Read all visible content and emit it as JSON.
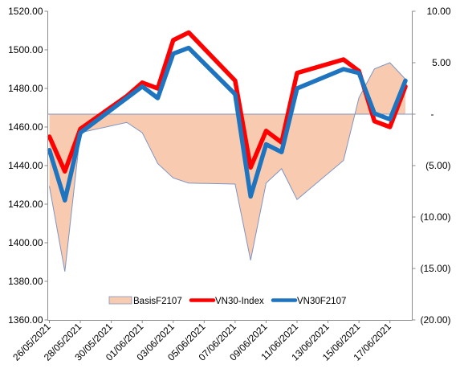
{
  "chart_data": {
    "type": "line",
    "x": [
      "26/05/2021",
      "27/05/2021",
      "28/05/2021",
      "31/05/2021",
      "01/06/2021",
      "02/06/2021",
      "03/06/2021",
      "04/06/2021",
      "07/06/2021",
      "08/06/2021",
      "09/06/2021",
      "10/06/2021",
      "11/06/2021",
      "14/06/2021",
      "15/06/2021",
      "16/06/2021",
      "17/06/2021",
      "18/06/2021"
    ],
    "x_date_min": "26/05/2021",
    "x_date_max": "18/06/2021",
    "x_tick_labels": [
      "26/05/2021",
      "28/05/2021",
      "30/05/2021",
      "01/06/2021",
      "03/06/2021",
      "05/06/2021",
      "07/06/2021",
      "09/06/2021",
      "11/06/2021",
      "13/06/2021",
      "15/06/2021",
      "17/06/2021"
    ],
    "y_left": {
      "min": 1360,
      "max": 1520,
      "step": 20,
      "tick_labels": [
        "1360.00",
        "1380.00",
        "1400.00",
        "1420.00",
        "1440.00",
        "1460.00",
        "1480.00",
        "1500.00",
        "1520.00"
      ]
    },
    "y_right": {
      "min": -20,
      "max": 10,
      "step": 5,
      "tick_labels": [
        "(20.00)",
        "(15.00)",
        "(10.00)",
        "(5.00)",
        "-",
        "5.00",
        "10.00"
      ]
    },
    "series": [
      {
        "name": "BasisF2107",
        "type": "area",
        "axis": "right",
        "color": "#F8CBB0",
        "outline": "#7F94C2",
        "dates": [
          "26/05/2021",
          "27/05/2021",
          "28/05/2021",
          "31/05/2021",
          "01/06/2021",
          "02/06/2021",
          "03/06/2021",
          "04/06/2021",
          "07/06/2021",
          "08/06/2021",
          "09/06/2021",
          "10/06/2021",
          "11/06/2021",
          "14/06/2021",
          "15/06/2021",
          "16/06/2021",
          "17/06/2021",
          "18/06/2021"
        ],
        "values": [
          -7.0,
          -15.3,
          -1.8,
          -0.8,
          -1.8,
          -4.8,
          -6.2,
          -6.7,
          -6.8,
          -14.2,
          -6.7,
          -5.3,
          -8.3,
          -4.5,
          1.6,
          4.4,
          5.0,
          3.4
        ]
      },
      {
        "name": "VN30-Index",
        "type": "line",
        "axis": "left",
        "color": "#FF0000",
        "dates": [
          "26/05/2021",
          "27/05/2021",
          "28/05/2021",
          "31/05/2021",
          "01/06/2021",
          "02/06/2021",
          "03/06/2021",
          "04/06/2021",
          "07/06/2021",
          "08/06/2021",
          "09/06/2021",
          "10/06/2021",
          "11/06/2021",
          "14/06/2021",
          "15/06/2021",
          "16/06/2021",
          "17/06/2021",
          "18/06/2021"
        ],
        "values": [
          1455,
          1437,
          1459,
          1476,
          1483,
          1480,
          1505,
          1509,
          1484,
          1439,
          1458,
          1452,
          1488,
          1495,
          1489,
          1463,
          1460,
          1481
        ]
      },
      {
        "name": "VN30F2107",
        "type": "line",
        "axis": "left",
        "color": "#1E74BE",
        "dates": [
          "26/05/2021",
          "27/05/2021",
          "28/05/2021",
          "31/05/2021",
          "01/06/2021",
          "02/06/2021",
          "03/06/2021",
          "04/06/2021",
          "07/06/2021",
          "08/06/2021",
          "09/06/2021",
          "10/06/2021",
          "11/06/2021",
          "14/06/2021",
          "15/06/2021",
          "16/06/2021",
          "17/06/2021",
          "18/06/2021"
        ],
        "values": [
          1448,
          1422,
          1457,
          1475,
          1481,
          1475,
          1498,
          1501,
          1477,
          1424,
          1451,
          1447,
          1480,
          1490,
          1488,
          1467,
          1464,
          1484
        ]
      }
    ],
    "legend": {
      "position": "bottom-center",
      "order": [
        "BasisF2107",
        "VN30-Index",
        "VN30F2107"
      ]
    },
    "grid": false
  }
}
